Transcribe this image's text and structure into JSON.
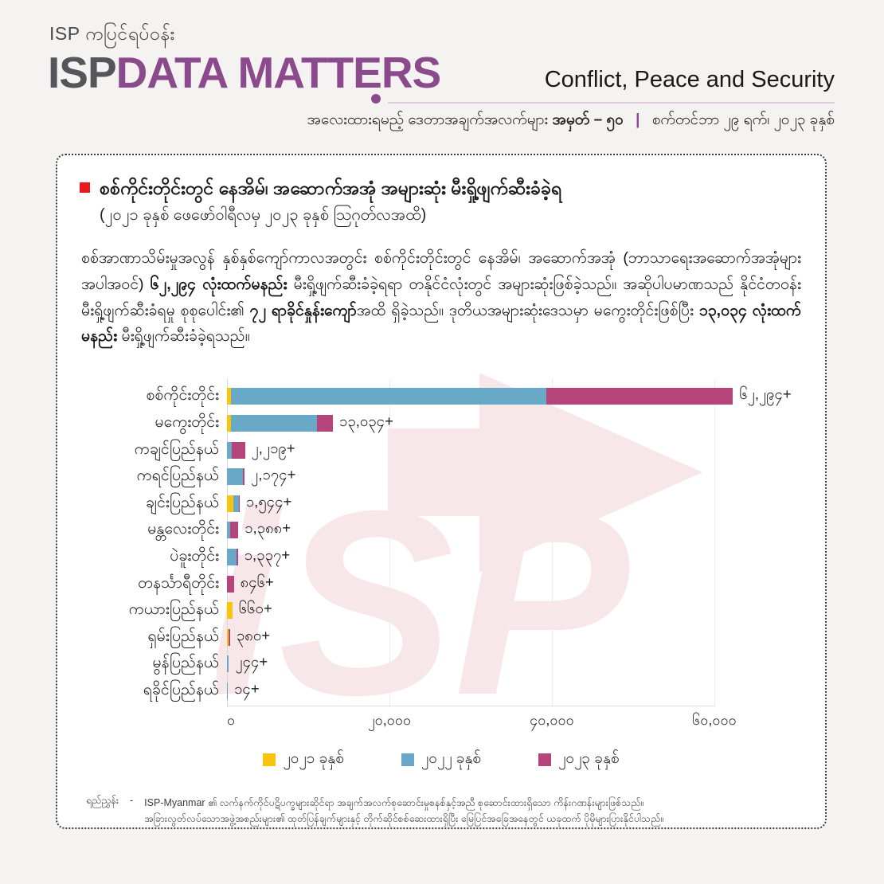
{
  "header": {
    "tagline": "ISP ကပြင်ရပ်ဝန်း",
    "logo_prefix": "ISP",
    "logo_main": "DATA MATTERS",
    "category": "Conflict, Peace and Security",
    "issue_prefix": "အလေးထားရမည့် ဒေတာအချက်အလက်များ",
    "issue_number": "အမှတ် – ၅၀",
    "separator": "|",
    "date": "စက်တင်ဘာ ၂၉ ရက်၊ ၂၀၂၃ ခုနှစ်"
  },
  "card": {
    "title": "စစ်ကိုင်းတိုင်းတွင် နေအိမ်၊ အဆောက်အအုံ အများဆုံး မီးရှို့ဖျက်ဆီးခံခဲ့ရ",
    "subtitle": "(၂၀၂၁ ခုနှစ် ဖေဖော်ဝါရီလမှ ၂၀၂၃ ခုနှစ် သြဂုတ်လအထိ)",
    "paragraph_segments": [
      {
        "text": "စစ်အာဏာသိမ်းမှုအလွန် နှစ်နှစ်ကျော်ကာလအတွင်း စစ်ကိုင်းတိုင်းတွင် နေအိမ်၊ အဆောက်အအုံ (ဘာသာရေးအဆောက်အအုံများ အပါအဝင်) ",
        "bold": false
      },
      {
        "text": "၆၂,၂၉၄ လုံးထက်မနည်း",
        "bold": true
      },
      {
        "text": " မီးရှို့ဖျက်ဆီးခံခဲ့ရရာ တနိုင်ငံလုံးတွင် အများဆုံးဖြစ်ခဲ့သည်။ အဆိုပါပမာဏသည် နိုင်ငံတဝန်း မီးရှို့ဖျက်ဆီးခံရမှု စုစုပေါင်း၏ ",
        "bold": false
      },
      {
        "text": "၇၂ ရာခိုင်နှုန်းကျော်",
        "bold": true
      },
      {
        "text": "အထိ ရှိခဲ့သည်။ ဒုတိယအများဆုံးဒေသမှာ မကွေးတိုင်းဖြစ်ပြီး ",
        "bold": false
      },
      {
        "text": "၁၃,၀၃၄ လုံးထက်မနည်း",
        "bold": true
      },
      {
        "text": " မီးရှို့ဖျက်ဆီးခံခဲ့ရသည်။",
        "bold": false
      }
    ]
  },
  "chart_data": {
    "type": "bar",
    "orientation": "horizontal",
    "stacked": true,
    "title": "စစ်ကိုင်းတိုင်းတွင် နေအိမ်၊ အဆောက်အအုံ အများဆုံး မီးရှို့ဖျက်ဆီးခံခဲ့ရ (၂၀၂၁ ဖေဖော်ဝါရီ – ၂၀၂၃ သြဂုတ်)",
    "xlabel": "",
    "ylabel": "",
    "xlim": [
      0,
      60000
    ],
    "grid": true,
    "legend_position": "bottom",
    "categories": [
      "စစ်ကိုင်းတိုင်း",
      "မကွေးတိုင်း",
      "ကချင်ပြည်နယ်",
      "ကရင်ပြည်နယ်",
      "ချင်းပြည်နယ်",
      "မန္တလေးတိုင်း",
      "ပဲခူးတိုင်း",
      "တနင်္သာရီတိုင်း",
      "ကယားပြည်နယ်",
      "ရှမ်းပြည်နယ်",
      "မွန်ပြည်နယ်",
      "ရခိုင်ပြည်နယ်"
    ],
    "series": [
      {
        "name": "၂၀၂၁ ခုနှစ်",
        "year": 2021,
        "color": "#f8c40e",
        "values": [
          500,
          500,
          0,
          0,
          810,
          0,
          0,
          0,
          660,
          200,
          0,
          0
        ]
      },
      {
        "name": "၂၀၂၂ ခုနှစ်",
        "year": 2022,
        "color": "#68a9c7",
        "values": [
          38794,
          10534,
          610,
          1974,
          614,
          350,
          1137,
          0,
          0,
          0,
          244,
          14
        ]
      },
      {
        "name": "၂၀၂၃ ခုနှစ်",
        "year": 2023,
        "color": "#b4447a",
        "values": [
          23000,
          2000,
          1609,
          200,
          120,
          1038,
          200,
          846,
          0,
          180,
          0,
          0
        ]
      }
    ],
    "totals": [
      62294,
      13034,
      2219,
      2174,
      1544,
      1388,
      1337,
      846,
      660,
      380,
      244,
      14
    ],
    "total_labels": [
      "၆၂,၂၉၄+",
      "၁၃,၀၃၄+",
      "၂,၂၁၉+",
      "၂,၁၇၄+",
      "၁,၅၄၄+",
      "၁,၃၈၈+",
      "၁,၃၃၇+",
      "၈၄၆+",
      "၆၆၀+",
      "၃၈၀+",
      "၂၄၄+",
      "၁၄+"
    ],
    "x_ticks": [
      {
        "value": 0,
        "label": "၀"
      },
      {
        "value": 20000,
        "label": "၂၀,၀၀၀"
      },
      {
        "value": 40000,
        "label": "၄၀,၀၀၀"
      },
      {
        "value": 60000,
        "label": "၆၀,၀၀၀"
      }
    ]
  },
  "watermark": {
    "text": "iSP",
    "color": "#f7e7e9"
  },
  "footer": {
    "label": "ရည်ညွှန်း",
    "dash": "-",
    "line1": "ISP-Myanmar ၏ လက်နက်ကိုင်ပဋိပက္ခများဆိုင်ရာ အချက်အလက်စုဆောင်းမှုစနစ်နှင့်အညီ စုဆောင်းထားရှိသော ကိန်းဂဏန်းများဖြစ်သည်။",
    "line2": "အခြားလွတ်လပ်သောအဖွဲ့အစည်းများ၏ ထုတ်ပြန်ချက်များနှင့် တိုက်ဆိုင်စစ်ဆေးထားရှိပြီး မြေပြင်အခြေအနေတွင် ယခုထက် ပိုမိုများပြားနိုင်ပါသည်။"
  }
}
